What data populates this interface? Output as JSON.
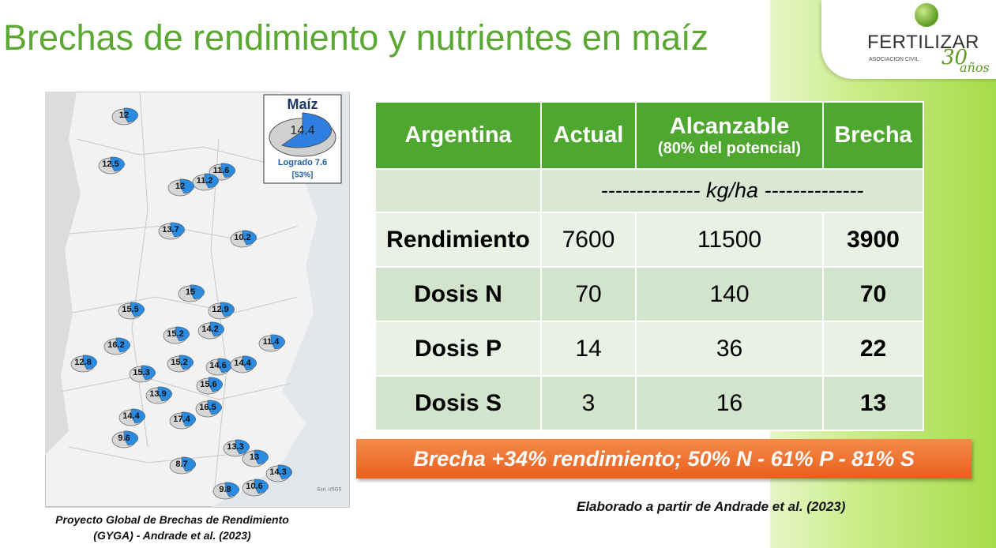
{
  "title": "Brechas de rendimiento y nutrientes en maíz",
  "logo": {
    "name": "FERTILIZAR",
    "subtitle": "ASOCIACION CIVIL",
    "number": "30",
    "word": "años"
  },
  "map": {
    "legend": {
      "title": "Maíz",
      "value": "14.4",
      "caption": "Logrado 7.6",
      "percent": "[53%]"
    },
    "labels": [
      "12",
      "12.5",
      "11.6",
      "11.2",
      "12",
      "13.7",
      "10.2",
      "15",
      "12.9",
      "15.5",
      "14.2",
      "15.2",
      "11.4",
      "16.2",
      "12.8",
      "15.2",
      "14.6",
      "14.4",
      "15.3",
      "15.6",
      "13.9",
      "16.5",
      "14.4",
      "17.4",
      "9.6",
      "13.3",
      "13",
      "8.7",
      "14.3",
      "9.8",
      "10.6"
    ],
    "credit": "Esri, USGS",
    "caption": [
      "Proyecto Global de Brechas de Rendimiento",
      "(GYGA) - Andrade et al. (2023)"
    ]
  },
  "table": {
    "header": [
      "Argentina",
      "Actual",
      "Alcanzable",
      "(80% del potencial)",
      "Brecha"
    ],
    "unit": "-------------- kg/ha --------------",
    "rows": [
      [
        "Rendimiento",
        "7600",
        "11500",
        "3900"
      ],
      [
        "Dosis N",
        "70",
        "140",
        "70"
      ],
      [
        "Dosis P",
        "14",
        "36",
        "22"
      ],
      [
        "Dosis S",
        "3",
        "16",
        "13"
      ]
    ]
  },
  "banner": "Brecha +34% rendimiento; 50% N - 61% P - 81% S",
  "source": "Elaborado a partir de Andrade et al. (2023)"
}
